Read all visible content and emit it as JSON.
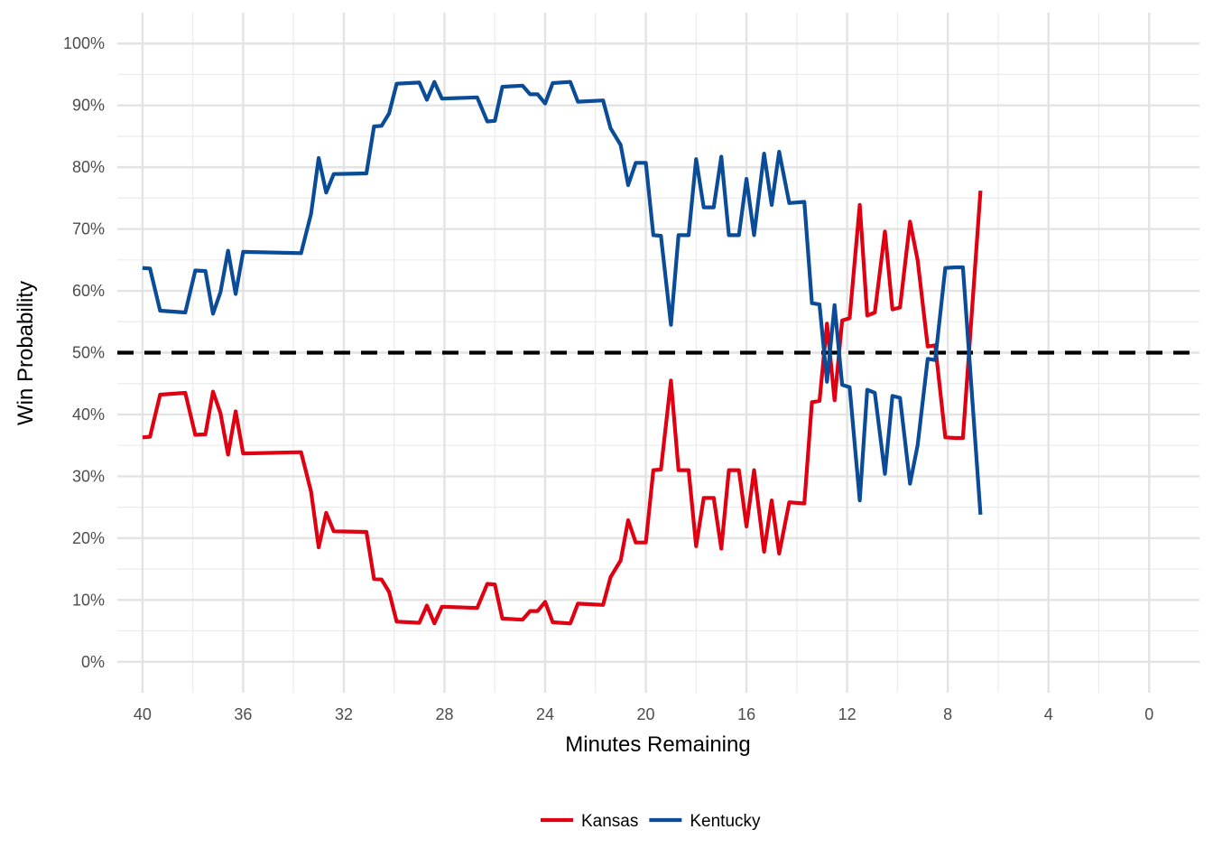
{
  "chart_data": {
    "type": "line",
    "xlabel": "Minutes Remaining",
    "ylabel": "Win Probability",
    "xlim": [
      41.0,
      -2.0
    ],
    "ylim": [
      -0.05,
      1.05
    ],
    "x_ticks": [
      40,
      36,
      32,
      28,
      24,
      20,
      16,
      12,
      8,
      4,
      0
    ],
    "x_tick_labels": [
      "40",
      "36",
      "32",
      "28",
      "24",
      "20",
      "16",
      "12",
      "8",
      "4",
      "0"
    ],
    "y_ticks": [
      0,
      0.1,
      0.2,
      0.3,
      0.4,
      0.5,
      0.6,
      0.7,
      0.8,
      0.9,
      1.0
    ],
    "y_tick_labels": [
      "0%",
      "10%",
      "20%",
      "30%",
      "40%",
      "50%",
      "60%",
      "70%",
      "80%",
      "90%",
      "100%"
    ],
    "grid": true,
    "reference_line": {
      "y": 0.5,
      "style": "dashed",
      "color": "#000000"
    },
    "legend_position": "bottom",
    "series": [
      {
        "name": "Kansas",
        "color": "#E00012",
        "points": [
          [
            40.0,
            0.363
          ],
          [
            39.7,
            0.364
          ],
          [
            39.3,
            0.432
          ],
          [
            38.3,
            0.435
          ],
          [
            37.9,
            0.367
          ],
          [
            37.5,
            0.368
          ],
          [
            37.2,
            0.437
          ],
          [
            36.9,
            0.402
          ],
          [
            36.6,
            0.335
          ],
          [
            36.3,
            0.405
          ],
          [
            36.0,
            0.337
          ],
          [
            33.7,
            0.339
          ],
          [
            33.3,
            0.275
          ],
          [
            33.0,
            0.185
          ],
          [
            32.7,
            0.241
          ],
          [
            32.4,
            0.211
          ],
          [
            31.1,
            0.21
          ],
          [
            30.8,
            0.134
          ],
          [
            30.5,
            0.133
          ],
          [
            30.2,
            0.113
          ],
          [
            29.9,
            0.065
          ],
          [
            29.0,
            0.063
          ],
          [
            28.7,
            0.091
          ],
          [
            28.4,
            0.062
          ],
          [
            28.1,
            0.089
          ],
          [
            26.7,
            0.087
          ],
          [
            26.3,
            0.126
          ],
          [
            26.0,
            0.125
          ],
          [
            25.7,
            0.07
          ],
          [
            24.9,
            0.068
          ],
          [
            24.6,
            0.082
          ],
          [
            24.3,
            0.082
          ],
          [
            24.0,
            0.097
          ],
          [
            23.7,
            0.064
          ],
          [
            23.0,
            0.062
          ],
          [
            22.7,
            0.094
          ],
          [
            21.7,
            0.092
          ],
          [
            21.4,
            0.137
          ],
          [
            21.0,
            0.164
          ],
          [
            20.7,
            0.229
          ],
          [
            20.4,
            0.193
          ],
          [
            20.0,
            0.193
          ],
          [
            19.7,
            0.31
          ],
          [
            19.4,
            0.311
          ],
          [
            19.0,
            0.455
          ],
          [
            18.7,
            0.31
          ],
          [
            18.3,
            0.31
          ],
          [
            18.0,
            0.187
          ],
          [
            17.7,
            0.265
          ],
          [
            17.3,
            0.265
          ],
          [
            17.0,
            0.183
          ],
          [
            16.7,
            0.31
          ],
          [
            16.3,
            0.31
          ],
          [
            16.0,
            0.219
          ],
          [
            15.7,
            0.31
          ],
          [
            15.3,
            0.178
          ],
          [
            15.0,
            0.261
          ],
          [
            14.7,
            0.175
          ],
          [
            14.3,
            0.258
          ],
          [
            13.7,
            0.256
          ],
          [
            13.4,
            0.42
          ],
          [
            13.1,
            0.422
          ],
          [
            12.8,
            0.547
          ],
          [
            12.5,
            0.423
          ],
          [
            12.2,
            0.552
          ],
          [
            11.9,
            0.556
          ],
          [
            11.5,
            0.739
          ],
          [
            11.2,
            0.56
          ],
          [
            10.9,
            0.565
          ],
          [
            10.5,
            0.696
          ],
          [
            10.2,
            0.57
          ],
          [
            9.9,
            0.573
          ],
          [
            9.5,
            0.712
          ],
          [
            9.2,
            0.65
          ],
          [
            8.8,
            0.51
          ],
          [
            8.5,
            0.512
          ],
          [
            8.1,
            0.363
          ],
          [
            7.7,
            0.362
          ],
          [
            7.4,
            0.362
          ],
          [
            6.7,
            0.762
          ]
        ]
      },
      {
        "name": "Kentucky",
        "color": "#0A4C98",
        "points": [
          [
            40.0,
            0.637
          ],
          [
            39.7,
            0.636
          ],
          [
            39.3,
            0.568
          ],
          [
            38.3,
            0.565
          ],
          [
            37.9,
            0.633
          ],
          [
            37.5,
            0.632
          ],
          [
            37.2,
            0.563
          ],
          [
            36.9,
            0.598
          ],
          [
            36.6,
            0.665
          ],
          [
            36.3,
            0.595
          ],
          [
            36.0,
            0.663
          ],
          [
            33.7,
            0.661
          ],
          [
            33.3,
            0.725
          ],
          [
            33.0,
            0.815
          ],
          [
            32.7,
            0.759
          ],
          [
            32.4,
            0.789
          ],
          [
            31.1,
            0.79
          ],
          [
            30.8,
            0.866
          ],
          [
            30.5,
            0.867
          ],
          [
            30.2,
            0.887
          ],
          [
            29.9,
            0.935
          ],
          [
            29.0,
            0.937
          ],
          [
            28.7,
            0.909
          ],
          [
            28.4,
            0.938
          ],
          [
            28.1,
            0.911
          ],
          [
            26.7,
            0.913
          ],
          [
            26.3,
            0.874
          ],
          [
            26.0,
            0.875
          ],
          [
            25.7,
            0.93
          ],
          [
            24.9,
            0.932
          ],
          [
            24.6,
            0.918
          ],
          [
            24.3,
            0.918
          ],
          [
            24.0,
            0.903
          ],
          [
            23.7,
            0.936
          ],
          [
            23.0,
            0.938
          ],
          [
            22.7,
            0.906
          ],
          [
            21.7,
            0.908
          ],
          [
            21.4,
            0.863
          ],
          [
            21.0,
            0.836
          ],
          [
            20.7,
            0.771
          ],
          [
            20.4,
            0.807
          ],
          [
            20.0,
            0.807
          ],
          [
            19.7,
            0.69
          ],
          [
            19.4,
            0.689
          ],
          [
            19.0,
            0.545
          ],
          [
            18.7,
            0.69
          ],
          [
            18.3,
            0.69
          ],
          [
            18.0,
            0.813
          ],
          [
            17.7,
            0.735
          ],
          [
            17.3,
            0.735
          ],
          [
            17.0,
            0.817
          ],
          [
            16.7,
            0.69
          ],
          [
            16.3,
            0.69
          ],
          [
            16.0,
            0.781
          ],
          [
            15.7,
            0.69
          ],
          [
            15.3,
            0.822
          ],
          [
            15.0,
            0.739
          ],
          [
            14.7,
            0.825
          ],
          [
            14.3,
            0.742
          ],
          [
            13.7,
            0.744
          ],
          [
            13.4,
            0.58
          ],
          [
            13.1,
            0.578
          ],
          [
            12.8,
            0.453
          ],
          [
            12.5,
            0.577
          ],
          [
            12.2,
            0.448
          ],
          [
            11.9,
            0.444
          ],
          [
            11.5,
            0.261
          ],
          [
            11.2,
            0.44
          ],
          [
            10.9,
            0.435
          ],
          [
            10.5,
            0.304
          ],
          [
            10.2,
            0.43
          ],
          [
            9.9,
            0.427
          ],
          [
            9.5,
            0.288
          ],
          [
            9.2,
            0.35
          ],
          [
            8.8,
            0.49
          ],
          [
            8.5,
            0.488
          ],
          [
            8.1,
            0.637
          ],
          [
            7.7,
            0.638
          ],
          [
            7.4,
            0.638
          ],
          [
            6.7,
            0.238
          ]
        ]
      }
    ]
  }
}
